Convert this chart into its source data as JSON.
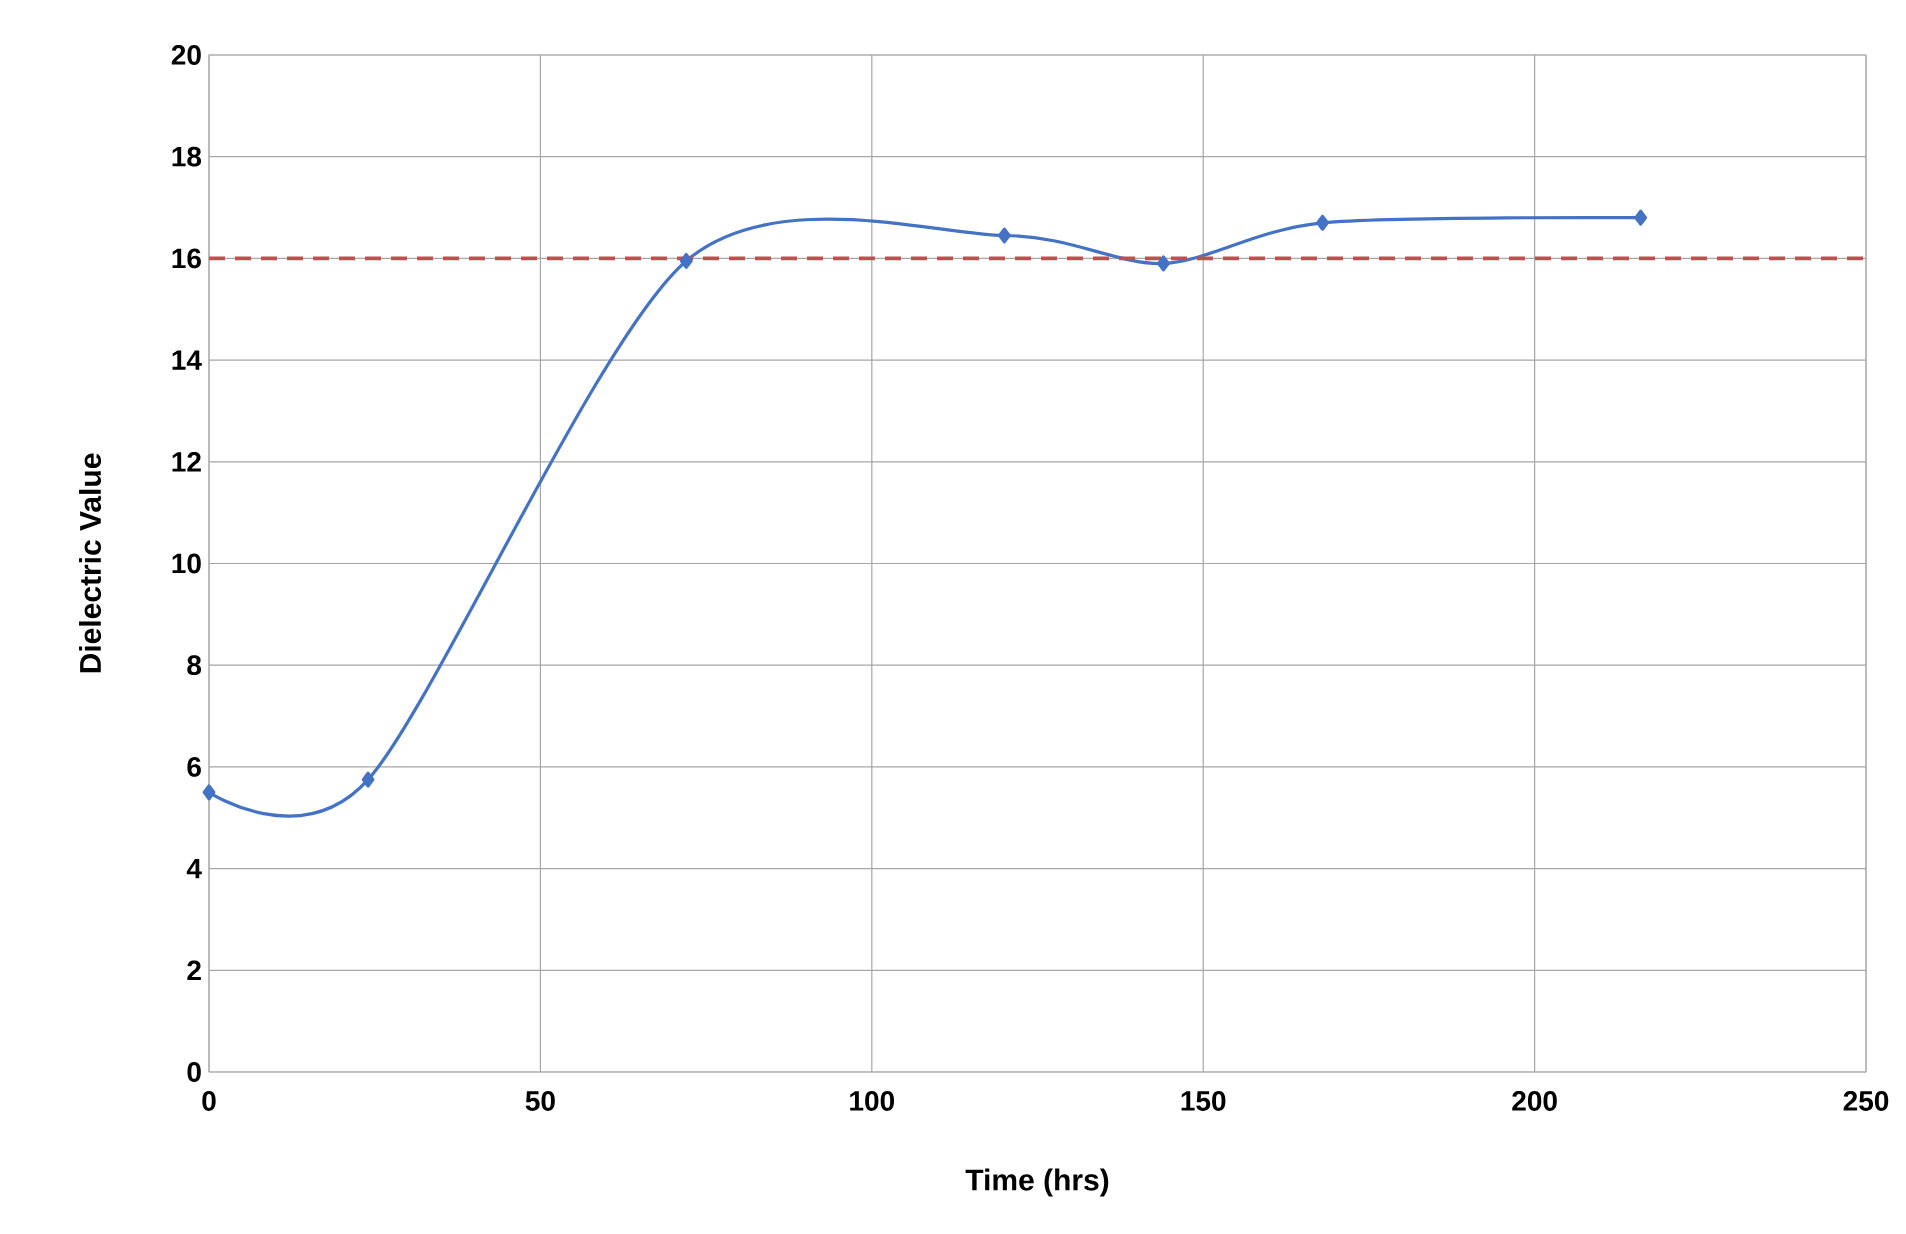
{
  "chart_data": {
    "type": "line",
    "xlabel": "Time (hrs)",
    "ylabel": "Dielectric Value",
    "x": [
      0,
      24,
      72,
      120,
      144,
      168,
      216
    ],
    "series": [
      {
        "color": "#4472c4",
        "values": [
          5.5,
          5.75,
          15.95,
          16.45,
          15.9,
          16.7,
          16.8
        ]
      }
    ],
    "xlim": [
      0,
      250
    ],
    "xticks": [
      0,
      50,
      100,
      150,
      200,
      250
    ],
    "ylim": [
      0,
      20
    ],
    "yticks": [
      0,
      2,
      4,
      6,
      8,
      10,
      12,
      14,
      16,
      18,
      20
    ],
    "grid": true,
    "marker": "diamond",
    "line_style": "solid",
    "ref_lines": [
      {
        "axis": "y",
        "value": 16,
        "color": "#c0504d",
        "line_style": "dashed"
      }
    ]
  }
}
